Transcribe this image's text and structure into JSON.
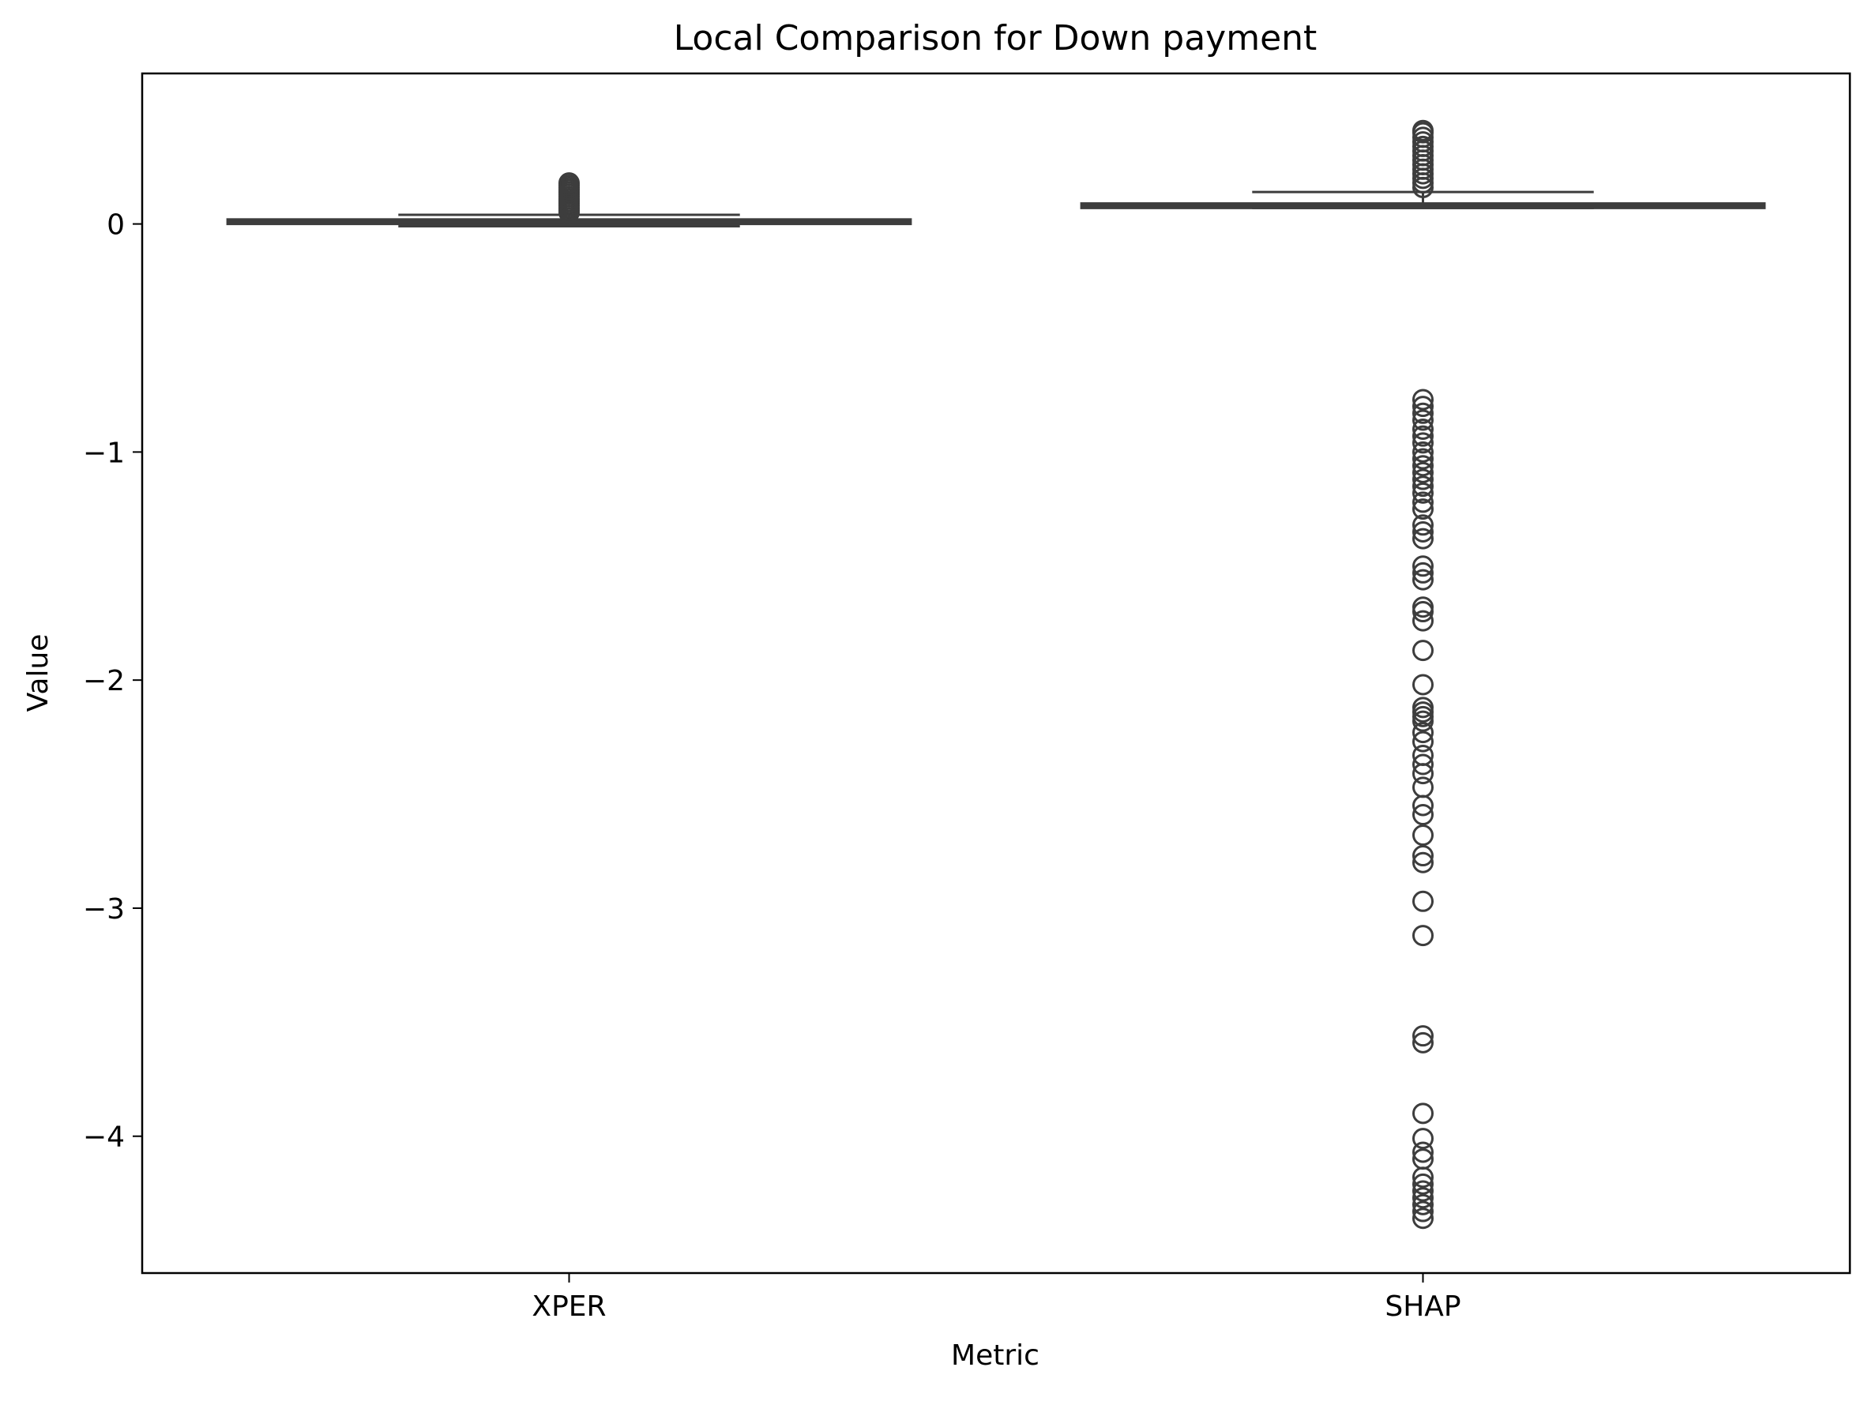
{
  "chart_data": {
    "type": "box",
    "title": "Local Comparison for Down payment",
    "xlabel": "Metric",
    "ylabel": "Value",
    "ylim": [
      -4.6,
      0.66
    ],
    "yticks": [
      0,
      -1,
      -2,
      -3,
      -4
    ],
    "ytick_labels": [
      "0",
      "−1",
      "−2",
      "−3",
      "−4"
    ],
    "categories": [
      "XPER",
      "SHAP"
    ],
    "boxes": [
      {
        "category": "XPER",
        "whisker_low": -0.01,
        "q1": 0.0,
        "median": 0.01,
        "q3": 0.02,
        "whisker_high": 0.04,
        "outliers": [
          0.05,
          0.06,
          0.07,
          0.08,
          0.09,
          0.1,
          0.11,
          0.12,
          0.13,
          0.14,
          0.15,
          0.16,
          0.17,
          0.18
        ]
      },
      {
        "category": "SHAP",
        "whisker_low": 0.07,
        "q1": 0.07,
        "median": 0.08,
        "q3": 0.09,
        "whisker_high": 0.14,
        "outliers": [
          0.41,
          0.4,
          0.38,
          0.36,
          0.34,
          0.32,
          0.3,
          0.28,
          0.26,
          0.24,
          0.22,
          0.2,
          0.18,
          0.16,
          -0.77,
          -0.8,
          -0.83,
          -0.86,
          -0.9,
          -0.93,
          -0.96,
          -1.0,
          -1.03,
          -1.06,
          -1.09,
          -1.12,
          -1.15,
          -1.18,
          -1.22,
          -1.25,
          -1.32,
          -1.35,
          -1.38,
          -1.5,
          -1.53,
          -1.56,
          -1.68,
          -1.7,
          -1.74,
          -1.87,
          -2.02,
          -2.12,
          -2.14,
          -2.16,
          -2.18,
          -2.23,
          -2.27,
          -2.33,
          -2.37,
          -2.41,
          -2.47,
          -2.55,
          -2.59,
          -2.68,
          -2.77,
          -2.8,
          -2.97,
          -3.12,
          -3.56,
          -3.59,
          -3.9,
          -4.01,
          -4.07,
          -4.1,
          -4.18,
          -4.21,
          -4.24,
          -4.27,
          -4.3,
          -4.33,
          -4.36
        ]
      }
    ],
    "box_color": "#3d3d3d",
    "grid": false
  }
}
